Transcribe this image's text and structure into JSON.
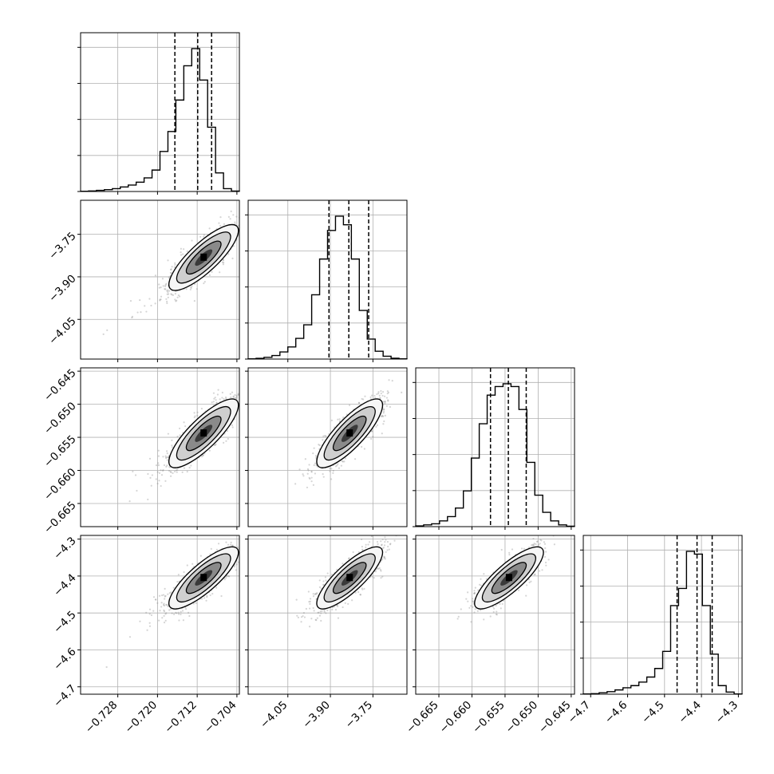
{
  "chart_data": {
    "type": "corner",
    "parameters": [
      {
        "range": [
          -0.7355,
          -0.7035
        ],
        "ticks": [
          {
            "v": -0.728,
            "label": "−0.728"
          },
          {
            "v": -0.72,
            "label": "−0.720"
          },
          {
            "v": -0.712,
            "label": "−0.712"
          },
          {
            "v": -0.704,
            "label": "−0.704"
          }
        ],
        "quantiles": [
          -0.7165,
          -0.7119,
          -0.7091
        ],
        "hist": [
          0.002,
          0.004,
          0.008,
          0.013,
          0.02,
          0.032,
          0.045,
          0.065,
          0.095,
          0.15,
          0.28,
          0.42,
          0.64,
          0.88,
          1.0,
          0.78,
          0.45,
          0.13,
          0.02,
          0.003
        ],
        "center": -0.7107,
        "sigma": 0.0035
      },
      {
        "range": [
          -4.19,
          -3.63
        ],
        "ticks": [
          {
            "v": -4.05,
            "label": "−4.05"
          },
          {
            "v": -3.9,
            "label": "−3.90"
          },
          {
            "v": -3.75,
            "label": "−3.75"
          }
        ],
        "quantiles": [
          -3.905,
          -3.835,
          -3.765
        ],
        "hist": [
          0.002,
          0.005,
          0.012,
          0.025,
          0.05,
          0.085,
          0.145,
          0.24,
          0.45,
          0.7,
          0.9,
          1.0,
          0.94,
          0.7,
          0.34,
          0.14,
          0.055,
          0.02,
          0.006,
          0.002
        ],
        "center": -3.832,
        "sigma": 0.058
      },
      {
        "range": [
          -0.6685,
          -0.6445
        ],
        "ticks": [
          {
            "v": -0.665,
            "label": "−0.665"
          },
          {
            "v": -0.66,
            "label": "−0.660"
          },
          {
            "v": -0.655,
            "label": "−0.655"
          },
          {
            "v": -0.65,
            "label": "−0.650"
          },
          {
            "v": -0.645,
            "label": "−0.645"
          }
        ],
        "quantiles": [
          -0.6572,
          -0.6545,
          -0.6518
        ],
        "hist": [
          0.005,
          0.012,
          0.02,
          0.04,
          0.07,
          0.13,
          0.25,
          0.48,
          0.72,
          0.92,
          0.98,
          1.0,
          0.98,
          0.82,
          0.45,
          0.22,
          0.1,
          0.04,
          0.012,
          0.003
        ],
        "center": -0.6544,
        "sigma": 0.0026
      },
      {
        "range": [
          -4.72,
          -4.29
        ],
        "ticks": [
          {
            "v": -4.7,
            "label": "−4.7"
          },
          {
            "v": -4.6,
            "label": "−4.6"
          },
          {
            "v": -4.5,
            "label": "−4.5"
          },
          {
            "v": -4.4,
            "label": "−4.4"
          },
          {
            "v": -4.3,
            "label": "−4.3"
          }
        ],
        "quantiles": [
          -4.466,
          -4.412,
          -4.371
        ],
        "hist": [
          0.002,
          0.004,
          0.01,
          0.018,
          0.03,
          0.045,
          0.06,
          0.085,
          0.12,
          0.18,
          0.3,
          0.62,
          0.74,
          1.0,
          0.98,
          0.62,
          0.28,
          0.06,
          0.015,
          0.002
        ],
        "center": -4.405,
        "sigma": 0.042
      }
    ],
    "correlation": 0.82,
    "grid": true,
    "line_style": {
      "quantile": "dashed"
    },
    "colors": {
      "line": "#000000",
      "grid": "#b0b0b0",
      "points": "#888888"
    }
  }
}
